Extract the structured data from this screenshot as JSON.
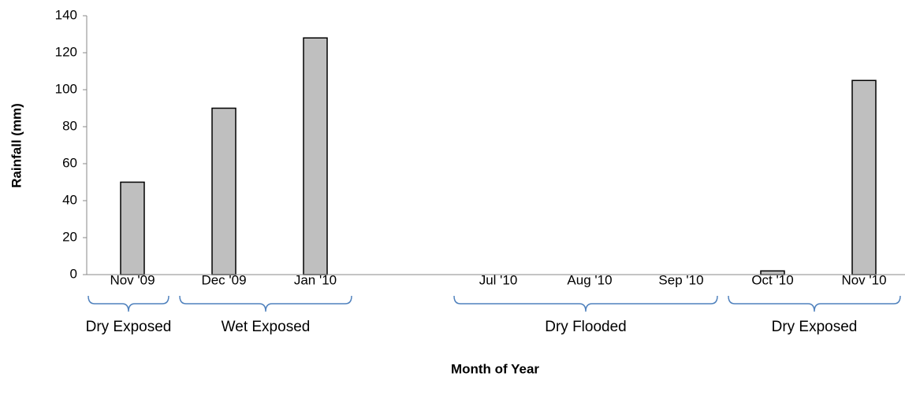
{
  "chart_data": {
    "type": "bar",
    "categories": [
      "Nov '09",
      "Dec '09",
      "Jan '10",
      null,
      "Jul '10",
      "Aug '10",
      "Sep '10",
      "Oct '10",
      "Nov '10"
    ],
    "values": [
      50,
      90,
      128,
      null,
      0,
      0,
      0,
      2,
      105
    ],
    "color": "#bfbfbf",
    "ylim": [
      0,
      140
    ],
    "yticks": [
      0,
      20,
      40,
      60,
      80,
      100,
      120,
      140
    ],
    "y_label": "Rainfall (mm)",
    "x_label": "Month of Year",
    "groups": [
      {
        "label": "Dry Exposed",
        "members": [
          "Nov '09"
        ]
      },
      {
        "label": "Wet Exposed",
        "members": [
          "Dec '09",
          "Jan '10"
        ]
      },
      {
        "label": "Dry Flooded",
        "members": [
          "Jul '10",
          "Aug '10",
          "Sep '10"
        ]
      },
      {
        "label": "Dry Exposed",
        "members": [
          "Oct '10",
          "Nov '10"
        ]
      }
    ],
    "grid": false
  }
}
